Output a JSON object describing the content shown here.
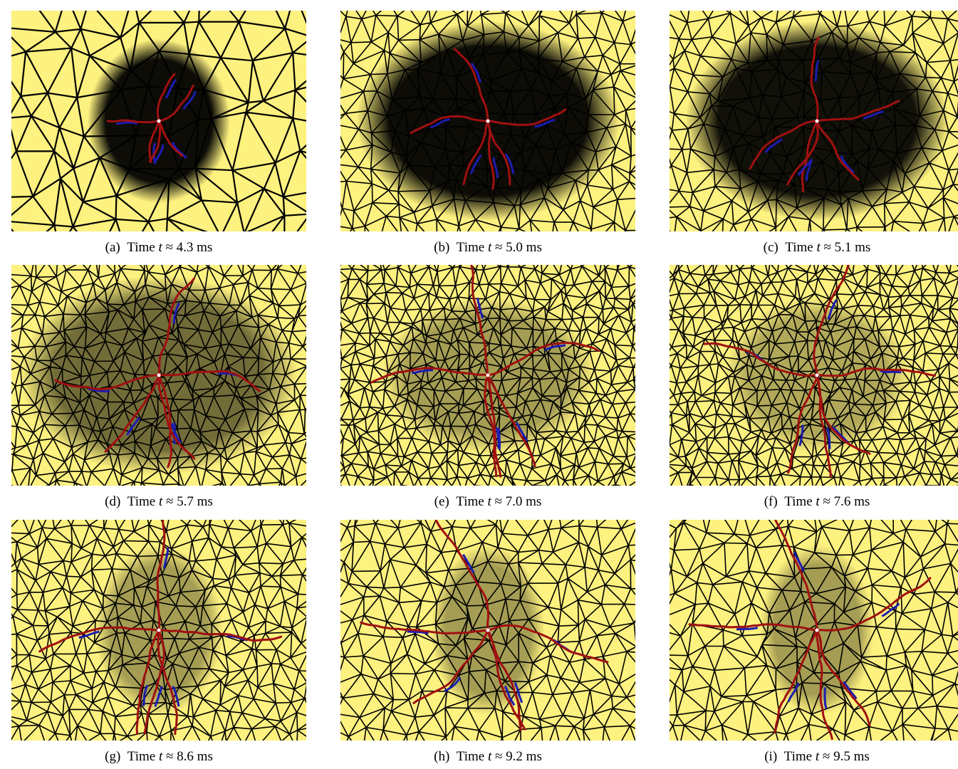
{
  "figure": {
    "panels": [
      {
        "label": "(a)",
        "text": "Time",
        "var": "t",
        "value": "≈ 4.3 ms"
      },
      {
        "label": "(b)",
        "text": "Time",
        "var": "t",
        "value": "≈ 5.0 ms"
      },
      {
        "label": "(c)",
        "text": "Time",
        "var": "t",
        "value": "≈ 5.1 ms"
      },
      {
        "label": "(d)",
        "text": "Time",
        "var": "t",
        "value": "≈ 5.7 ms"
      },
      {
        "label": "(e)",
        "text": "Time",
        "var": "t",
        "value": "≈ 7.0 ms"
      },
      {
        "label": "(f)",
        "text": "Time",
        "var": "t",
        "value": "≈ 7.6 ms"
      },
      {
        "label": "(g)",
        "text": "Time",
        "var": "t",
        "value": "≈ 8.6 ms"
      },
      {
        "label": "(h)",
        "text": "Time",
        "var": "t",
        "value": "≈ 9.2 ms"
      },
      {
        "label": "(i)",
        "text": "Time",
        "var": "t",
        "value": "≈ 9.5 ms"
      }
    ]
  }
}
